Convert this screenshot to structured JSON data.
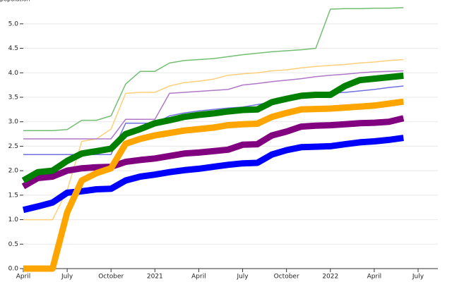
{
  "chart_data": {
    "type": "line",
    "title": "population",
    "x": [
      "2020-04",
      "2020-05",
      "2020-06",
      "2020-07",
      "2020-08",
      "2020-09",
      "2020-10",
      "2020-11",
      "2020-12",
      "2021-01",
      "2021-02",
      "2021-03",
      "2021-04",
      "2021-05",
      "2021-06",
      "2021-07",
      "2021-08",
      "2021-09",
      "2021-10",
      "2021-11",
      "2021-12",
      "2022-01",
      "2022-02",
      "2022-03",
      "2022-04",
      "2022-05",
      "2022-06"
    ],
    "xlim": [
      "2020-04",
      "2022-07"
    ],
    "xticks": [
      {
        "value": "2020-04",
        "label": "April"
      },
      {
        "value": "2020-07",
        "label": "July"
      },
      {
        "value": "2020-10",
        "label": "October"
      },
      {
        "value": "2021-01",
        "label": "2021"
      },
      {
        "value": "2021-04",
        "label": "April"
      },
      {
        "value": "2021-07",
        "label": "July"
      },
      {
        "value": "2021-10",
        "label": "October"
      },
      {
        "value": "2022-01",
        "label": "2022"
      },
      {
        "value": "2022-04",
        "label": "April"
      },
      {
        "value": "2022-07",
        "label": "July"
      }
    ],
    "ylim": [
      0,
      5.3
    ],
    "yticks": [
      {
        "value": 0,
        "label": "0.0"
      },
      {
        "value": 0.5,
        "label": "0.5"
      },
      {
        "value": 1,
        "label": "1.0"
      },
      {
        "value": 1.5,
        "label": "1.5"
      },
      {
        "value": 2,
        "label": "2.0"
      },
      {
        "value": 2.5,
        "label": "2.5"
      },
      {
        "value": 3,
        "label": "3.0"
      },
      {
        "value": 3.5,
        "label": "3.5"
      },
      {
        "value": 4,
        "label": "4.0"
      },
      {
        "value": 4.5,
        "label": "4.5"
      },
      {
        "value": 5,
        "label": "5.0"
      }
    ],
    "grid": true,
    "series": [
      {
        "color": "#72bf72",
        "width": 1.5,
        "values": [
          2.82,
          2.82,
          2.82,
          2.84,
          3.03,
          3.03,
          3.12,
          3.77,
          4.03,
          4.03,
          4.2,
          4.25,
          4.27,
          4.29,
          4.33,
          4.37,
          4.4,
          4.43,
          4.45,
          4.47,
          4.5,
          5.3,
          5.31,
          5.31,
          5.32,
          5.32,
          5.33
        ]
      },
      {
        "color": "#ffcf7a",
        "width": 1.5,
        "values": [
          1.0,
          1.0,
          1.0,
          1.6,
          2.6,
          2.65,
          2.85,
          3.58,
          3.6,
          3.6,
          3.73,
          3.8,
          3.83,
          3.87,
          3.95,
          3.98,
          4.0,
          4.04,
          4.06,
          4.1,
          4.13,
          4.15,
          4.17,
          4.2,
          4.22,
          4.25,
          4.27
        ]
      },
      {
        "color": "#b078c8",
        "width": 1.5,
        "values": [
          2.65,
          2.65,
          2.65,
          2.65,
          2.65,
          2.65,
          2.65,
          3.05,
          3.05,
          3.05,
          3.58,
          3.6,
          3.62,
          3.64,
          3.66,
          3.75,
          3.78,
          3.82,
          3.85,
          3.88,
          3.92,
          3.95,
          3.97,
          4.0,
          4.02,
          4.03,
          4.04
        ]
      },
      {
        "color": "#7070e0",
        "width": 1.5,
        "values": [
          2.33,
          2.33,
          2.33,
          2.33,
          2.33,
          2.33,
          2.33,
          2.97,
          2.97,
          2.97,
          3.12,
          3.18,
          3.22,
          3.25,
          3.28,
          3.3,
          3.35,
          3.4,
          3.45,
          3.5,
          3.55,
          3.58,
          3.6,
          3.63,
          3.66,
          3.7,
          3.73
        ]
      },
      {
        "color": "#0000ff",
        "width": 9,
        "values": [
          1.2,
          1.27,
          1.35,
          1.55,
          1.58,
          1.62,
          1.63,
          1.8,
          1.88,
          1.92,
          1.97,
          2.01,
          2.04,
          2.08,
          2.12,
          2.15,
          2.16,
          2.33,
          2.42,
          2.48,
          2.49,
          2.5,
          2.54,
          2.58,
          2.6,
          2.63,
          2.67
        ]
      },
      {
        "color": "#800080",
        "width": 9,
        "values": [
          1.68,
          1.85,
          1.88,
          2.0,
          2.05,
          2.07,
          2.08,
          2.18,
          2.22,
          2.25,
          2.3,
          2.35,
          2.37,
          2.4,
          2.43,
          2.53,
          2.54,
          2.72,
          2.8,
          2.9,
          2.92,
          2.93,
          2.95,
          2.97,
          2.98,
          3.0,
          3.07
        ]
      },
      {
        "color": "#ffa500",
        "width": 9,
        "values": [
          0,
          0,
          0,
          1.15,
          1.8,
          1.95,
          2.05,
          2.55,
          2.65,
          2.72,
          2.77,
          2.82,
          2.85,
          2.88,
          2.93,
          2.95,
          2.96,
          3.1,
          3.18,
          3.25,
          3.26,
          3.27,
          3.29,
          3.31,
          3.33,
          3.37,
          3.41
        ]
      },
      {
        "color": "#008000",
        "width": 9,
        "values": [
          1.8,
          1.97,
          2.0,
          2.2,
          2.35,
          2.4,
          2.45,
          2.75,
          2.85,
          2.97,
          3.03,
          3.1,
          3.14,
          3.17,
          3.21,
          3.24,
          3.25,
          3.4,
          3.47,
          3.53,
          3.55,
          3.55,
          3.73,
          3.85,
          3.88,
          3.91,
          3.94
        ]
      }
    ]
  }
}
